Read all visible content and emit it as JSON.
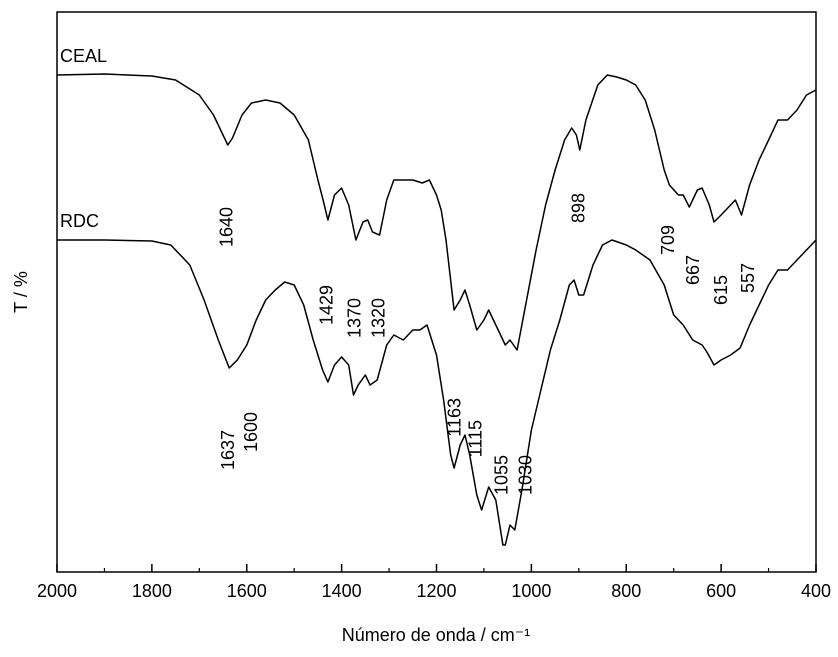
{
  "chart_data": {
    "type": "line",
    "x_label": "Número de onda / cm⁻¹",
    "y_label": "T / %",
    "xlim": [
      2000,
      400
    ],
    "ylim": [
      0,
      56
    ],
    "xticks": [
      2000,
      1800,
      1600,
      1400,
      1200,
      1000,
      800,
      600,
      400
    ],
    "xminorticks": [
      1900,
      1700,
      1500,
      1300,
      1100,
      900,
      700,
      500
    ],
    "series": [
      {
        "name": "CEAL",
        "color": "#000000",
        "x": [
          2000,
          1900,
          1800,
          1750,
          1700,
          1670,
          1650,
          1640,
          1630,
          1610,
          1590,
          1560,
          1530,
          1500,
          1470,
          1450,
          1440,
          1429,
          1415,
          1400,
          1385,
          1370,
          1355,
          1345,
          1335,
          1320,
          1305,
          1290,
          1270,
          1250,
          1230,
          1215,
          1200,
          1190,
          1180,
          1163,
          1150,
          1140,
          1130,
          1115,
          1100,
          1090,
          1075,
          1055,
          1045,
          1030,
          1010,
          990,
          970,
          950,
          930,
          915,
          905,
          898,
          885,
          860,
          840,
          820,
          800,
          780,
          760,
          740,
          720,
          709,
          690,
          680,
          667,
          650,
          640,
          625,
          615,
          600,
          580,
          570,
          557,
          540,
          520,
          500,
          480,
          460,
          440,
          420,
          400
        ],
        "values": [
          49.7,
          49.8,
          49.6,
          49.2,
          47.7,
          45.7,
          43.7,
          42.7,
          43.4,
          45.7,
          46.9,
          47.2,
          46.9,
          45.7,
          43.2,
          39.2,
          37.4,
          35.2,
          37.7,
          38.4,
          36.7,
          33.2,
          35.0,
          35.2,
          34.0,
          33.7,
          37.2,
          39.2,
          39.2,
          39.2,
          38.9,
          39.2,
          37.7,
          36.2,
          33.2,
          26.2,
          27.2,
          28.2,
          26.7,
          24.2,
          25.2,
          26.2,
          24.7,
          22.7,
          23.2,
          22.2,
          27.2,
          32.2,
          36.7,
          40.2,
          43.2,
          44.4,
          43.7,
          42.2,
          45.2,
          48.7,
          49.7,
          49.5,
          49.2,
          48.7,
          47.2,
          44.2,
          40.2,
          38.7,
          37.7,
          37.7,
          36.5,
          38.2,
          38.4,
          36.7,
          35.0,
          35.7,
          36.7,
          37.2,
          35.7,
          38.7,
          41.2,
          43.2,
          45.2,
          45.2,
          46.2,
          47.7,
          48.2
        ]
      },
      {
        "name": "RDC",
        "color": "#000000",
        "x": [
          2000,
          1900,
          1800,
          1760,
          1720,
          1690,
          1660,
          1637,
          1620,
          1600,
          1580,
          1560,
          1540,
          1520,
          1500,
          1480,
          1460,
          1440,
          1429,
          1415,
          1400,
          1385,
          1375,
          1365,
          1350,
          1340,
          1325,
          1305,
          1290,
          1270,
          1250,
          1235,
          1220,
          1200,
          1185,
          1170,
          1163,
          1150,
          1140,
          1130,
          1115,
          1105,
          1090,
          1075,
          1060,
          1055,
          1045,
          1035,
          1020,
          1000,
          980,
          960,
          940,
          920,
          910,
          900,
          890,
          870,
          850,
          830,
          800,
          780,
          750,
          720,
          700,
          680,
          660,
          640,
          630,
          615,
          600,
          580,
          560,
          540,
          520,
          500,
          480,
          460,
          440,
          420,
          400
        ],
        "values": [
          33.2,
          33.2,
          33.1,
          32.7,
          30.7,
          27.2,
          23.2,
          20.4,
          21.2,
          22.7,
          25.2,
          27.2,
          28.2,
          29.0,
          28.7,
          26.7,
          23.2,
          20.2,
          19.0,
          20.7,
          21.5,
          20.7,
          17.7,
          18.7,
          19.7,
          18.7,
          19.2,
          22.7,
          23.7,
          23.2,
          24.2,
          24.2,
          24.7,
          21.7,
          17.2,
          11.7,
          10.4,
          12.7,
          13.7,
          11.7,
          7.7,
          6.2,
          8.5,
          7.2,
          2.7,
          2.7,
          4.7,
          4.2,
          8.2,
          14.2,
          18.2,
          22.2,
          25.2,
          28.7,
          29.2,
          27.7,
          27.7,
          30.7,
          32.7,
          33.2,
          32.7,
          32.2,
          31.2,
          28.7,
          25.7,
          24.7,
          23.2,
          22.7,
          22.0,
          20.7,
          21.2,
          21.7,
          22.4,
          24.7,
          26.7,
          28.7,
          30.2,
          30.2,
          31.2,
          32.2,
          33.2
        ]
      }
    ],
    "annotations": [
      {
        "text": "1640",
        "x": 1640,
        "y": 36.5
      },
      {
        "text": "1429",
        "x": 1429,
        "y": 28.7
      },
      {
        "text": "1370",
        "x": 1370,
        "y": 27.4
      },
      {
        "text": "1320",
        "x": 1320,
        "y": 27.4
      },
      {
        "text": "1637",
        "x": 1637,
        "y": 14.2
      },
      {
        "text": "1600",
        "x": 1588,
        "y": 16.0
      },
      {
        "text": "1163",
        "x": 1160,
        "y": 17.4
      },
      {
        "text": "1115",
        "x": 1115,
        "y": 15.2
      },
      {
        "text": "1055",
        "x": 1060,
        "y": 11.7
      },
      {
        "text": "1030",
        "x": 1010,
        "y": 11.7
      },
      {
        "text": "898",
        "x": 898,
        "y": 37.9
      },
      {
        "text": "709",
        "x": 709,
        "y": 34.7
      },
      {
        "text": "667",
        "x": 657,
        "y": 31.7
      },
      {
        "text": "615",
        "x": 598,
        "y": 29.7
      },
      {
        "text": "557",
        "x": 541,
        "y": 30.9
      }
    ]
  }
}
